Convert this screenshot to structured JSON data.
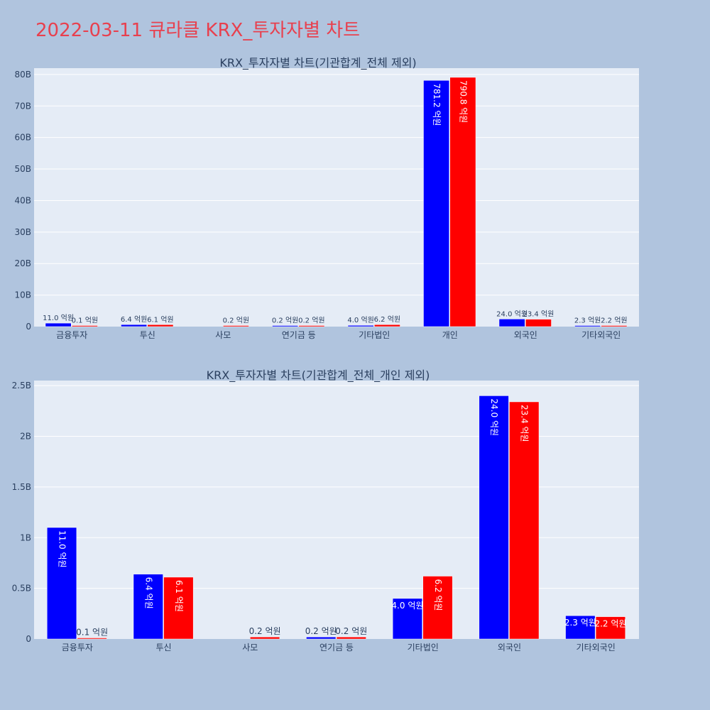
{
  "page": {
    "title": "2022-03-11 큐라클 KRX_투자자별 차트"
  },
  "colors": {
    "background": "#b0c4de",
    "plot_bg": "#e5ecf6",
    "title": "#e8404e",
    "series_a": "#0000ff",
    "series_b": "#ff0000"
  },
  "chart_data": [
    {
      "type": "bar",
      "title": "KRX_투자자별 차트(기관합계_전체 제외)",
      "categories": [
        "금융투자",
        "투신",
        "사모",
        "연기금 등",
        "기타법인",
        "개인",
        "외국인",
        "기타외국인"
      ],
      "ylim": [
        0,
        82000000000.0
      ],
      "yticks": [
        0,
        10000000000.0,
        20000000000.0,
        30000000000.0,
        40000000000.0,
        50000000000.0,
        60000000000.0,
        70000000000.0,
        80000000000.0
      ],
      "ytick_labels": [
        "0",
        "10B",
        "20B",
        "30B",
        "40B",
        "50B",
        "60B",
        "70B",
        "80B"
      ],
      "grid": true,
      "series": [
        {
          "color": "#0000ff",
          "values": [
            1100000000.0,
            640000000.0,
            0,
            20000000.0,
            400000000.0,
            78120000000.0,
            2400000000.0,
            230000000.0
          ],
          "labels": [
            "11.0 억원",
            "6.4 억원",
            "",
            "0.2 억원",
            "4.0 억원",
            "781.2 억원",
            "24.0 억원",
            "2.3 억원"
          ]
        },
        {
          "color": "#ff0000",
          "values": [
            10000000.0,
            610000000.0,
            20000000.0,
            20000000.0,
            620000000.0,
            79080000000.0,
            2340000000.0,
            220000000.0
          ],
          "labels": [
            "0.1 억원",
            "6.1 억원",
            "0.2 억원",
            "0.2 억원",
            "6.2 억원",
            "790.8 억원",
            "23.4 억원",
            "2.2 억원"
          ]
        }
      ]
    },
    {
      "type": "bar",
      "title": "KRX_투자자별 차트(기관합계_전체_개인 제외)",
      "categories": [
        "금융투자",
        "투신",
        "사모",
        "연기금 등",
        "기타법인",
        "외국인",
        "기타외국인"
      ],
      "ylim": [
        0,
        2550000000.0
      ],
      "yticks": [
        0,
        500000000.0,
        1000000000.0,
        1500000000.0,
        2000000000.0,
        2500000000.0
      ],
      "ytick_labels": [
        "0",
        "0.5B",
        "1B",
        "1.5B",
        "2B",
        "2.5B"
      ],
      "grid": true,
      "series": [
        {
          "color": "#0000ff",
          "values": [
            1100000000.0,
            640000000.0,
            0,
            20000000.0,
            400000000.0,
            2400000000.0,
            230000000.0
          ],
          "labels": [
            "11.0 억원",
            "6.4 억원",
            "",
            "0.2 억원",
            "4.0 억원",
            "24.0 억원",
            "2.3 억원"
          ]
        },
        {
          "color": "#ff0000",
          "values": [
            10000000.0,
            610000000.0,
            20000000.0,
            20000000.0,
            620000000.0,
            2340000000.0,
            220000000.0
          ],
          "labels": [
            "0.1 억원",
            "6.1 억원",
            "0.2 억원",
            "0.2 억원",
            "6.2 억원",
            "23.4 억원",
            "2.2 억원"
          ]
        }
      ]
    }
  ]
}
